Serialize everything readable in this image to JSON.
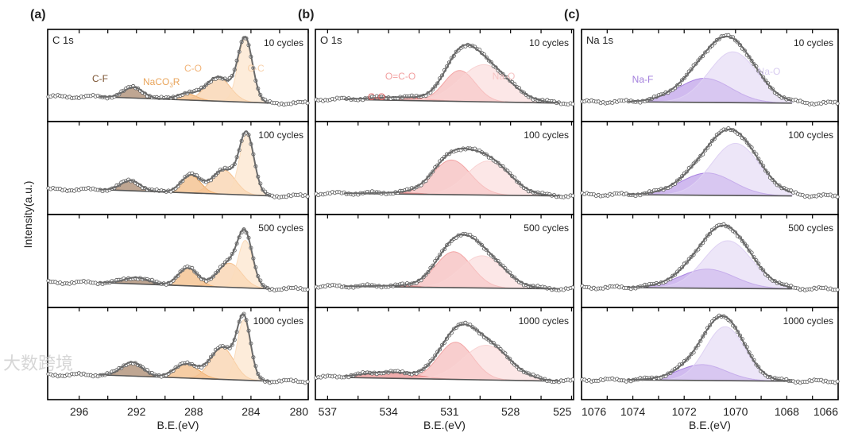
{
  "watermark": "大数跨境",
  "ylabel": "Intensity(a.u.)",
  "chart_data": [
    {
      "type": "area",
      "panel_label": "(a)",
      "title": "C 1s",
      "xlabel": "B.E.(eV)",
      "xlim": [
        298.2,
        280
      ],
      "xticks": [
        296,
        292,
        288,
        284,
        280
      ],
      "minor_step": 2,
      "fit_range": [
        294.6,
        282.6
      ],
      "components": [
        {
          "name": "C-F",
          "color": "#8a5c38",
          "label_color": "#7a5230"
        },
        {
          "name": "NaCO3R",
          "color": "#eea45a",
          "label_color": "#e9a55c"
        },
        {
          "name": "C-O",
          "color": "#f5c18e",
          "label_color": "#f2b57a"
        },
        {
          "name": "C-C",
          "color": "#fbdcbc",
          "label_color": "#f8d2ac"
        }
      ],
      "spectra": [
        {
          "label": "10 cycles",
          "bg": [
            0.1,
            0
          ],
          "peaks": [
            [
              292.2,
              0.17,
              1.6
            ],
            [
              288.5,
              0.1,
              1.6
            ],
            [
              286.3,
              0.38,
              2.0
            ],
            [
              284.4,
              1.0,
              1.2
            ]
          ]
        },
        {
          "label": "100 cycles",
          "bg": [
            0.1,
            0
          ],
          "peaks": [
            [
              292.4,
              0.16,
              1.6
            ],
            [
              288.2,
              0.28,
              1.6
            ],
            [
              285.9,
              0.38,
              1.9
            ],
            [
              284.3,
              0.95,
              1.2
            ]
          ]
        },
        {
          "label": "500 cycles",
          "bg": [
            0.1,
            0
          ],
          "peaks": [
            [
              292.0,
              0.1,
              2.0
            ],
            [
              288.4,
              0.28,
              1.6
            ],
            [
              285.5,
              0.38,
              2.0
            ],
            [
              284.4,
              0.75,
              1.2
            ]
          ]
        },
        {
          "label": "1000 cycles",
          "bg": [
            0.1,
            0
          ],
          "peaks": [
            [
              292.3,
              0.22,
              1.7
            ],
            [
              288.5,
              0.22,
              2.0
            ],
            [
              286.0,
              0.5,
              1.9
            ],
            [
              284.5,
              0.95,
              1.1
            ]
          ]
        }
      ]
    },
    {
      "type": "area",
      "panel_label": "(b)",
      "title": "O 1s",
      "xlabel": "B.E.(eV)",
      "xlim": [
        537.6,
        524.9
      ],
      "xticks": [
        537,
        534,
        531,
        528,
        525
      ],
      "minor_step": 1.5,
      "fit_range": [
        536.2,
        525.6
      ],
      "components": [
        {
          "name": "C-O",
          "color": "#e46a6a",
          "label_color": "#e06464"
        },
        {
          "name": "O=C-O",
          "color": "#f3a6a6",
          "label_color": "#f2a0a0"
        },
        {
          "name": "Na-O",
          "color": "#f9d3d3",
          "label_color": "#f6c4c4"
        }
      ],
      "spectra": [
        {
          "label": "10 cycles",
          "bg": [
            0.06,
            0
          ],
          "peaks": [
            [
              533.5,
              0.05,
              3.0
            ],
            [
              530.5,
              0.5,
              1.8
            ],
            [
              529.3,
              0.6,
              2.8
            ]
          ]
        },
        {
          "label": "100 cycles",
          "bg": [
            0.04,
            0
          ],
          "peaks": [
            [
              533.5,
              0.02,
              3.0
            ],
            [
              530.9,
              0.56,
              2.2
            ],
            [
              529.1,
              0.55,
              2.5
            ]
          ]
        },
        {
          "label": "500 cycles",
          "bg": [
            0.04,
            0
          ],
          "peaks": [
            [
              533.5,
              0.02,
              3.0
            ],
            [
              530.8,
              0.58,
              2.1
            ],
            [
              529.4,
              0.52,
              2.5
            ]
          ]
        },
        {
          "label": "1000 cycles",
          "bg": [
            0.06,
            0
          ],
          "peaks": [
            [
              534.0,
              0.1,
              3.0
            ],
            [
              530.7,
              0.6,
              2.0
            ],
            [
              529.2,
              0.56,
              2.7
            ]
          ]
        }
      ]
    },
    {
      "type": "area",
      "panel_label": "(c)",
      "title": "Na 1s",
      "xlabel": "B.E.(eV)",
      "xlim": [
        1076,
        1066
      ],
      "xticks": [
        1076,
        1074,
        1072,
        1070,
        1068,
        1066
      ],
      "minor_step": 1,
      "fit_range": [
        1074.2,
        1067.8
      ],
      "components": [
        {
          "name": "Na-F",
          "color": "#a982e2",
          "label_color": "#a27edc"
        },
        {
          "name": "Na-O",
          "color": "#ded1f3",
          "label_color": "#d8ccf0"
        }
      ],
      "spectra": [
        {
          "label": "10 cycles",
          "bg": [
            0.02,
            0
          ],
          "peaks": [
            [
              1071.2,
              0.38,
              2.4
            ],
            [
              1070.1,
              0.8,
              2.2
            ]
          ]
        },
        {
          "label": "100 cycles",
          "bg": [
            0.02,
            0
          ],
          "peaks": [
            [
              1071.1,
              0.35,
              2.4
            ],
            [
              1070.0,
              0.82,
              2.2
            ]
          ]
        },
        {
          "label": "500 cycles",
          "bg": [
            0.02,
            0
          ],
          "peaks": [
            [
              1071.1,
              0.3,
              2.5
            ],
            [
              1070.3,
              0.75,
              2.2
            ]
          ]
        },
        {
          "label": "1000 cycles",
          "bg": [
            0.02,
            0
          ],
          "peaks": [
            [
              1071.3,
              0.25,
              2.2
            ],
            [
              1070.4,
              0.85,
              1.8
            ]
          ]
        }
      ]
    }
  ]
}
